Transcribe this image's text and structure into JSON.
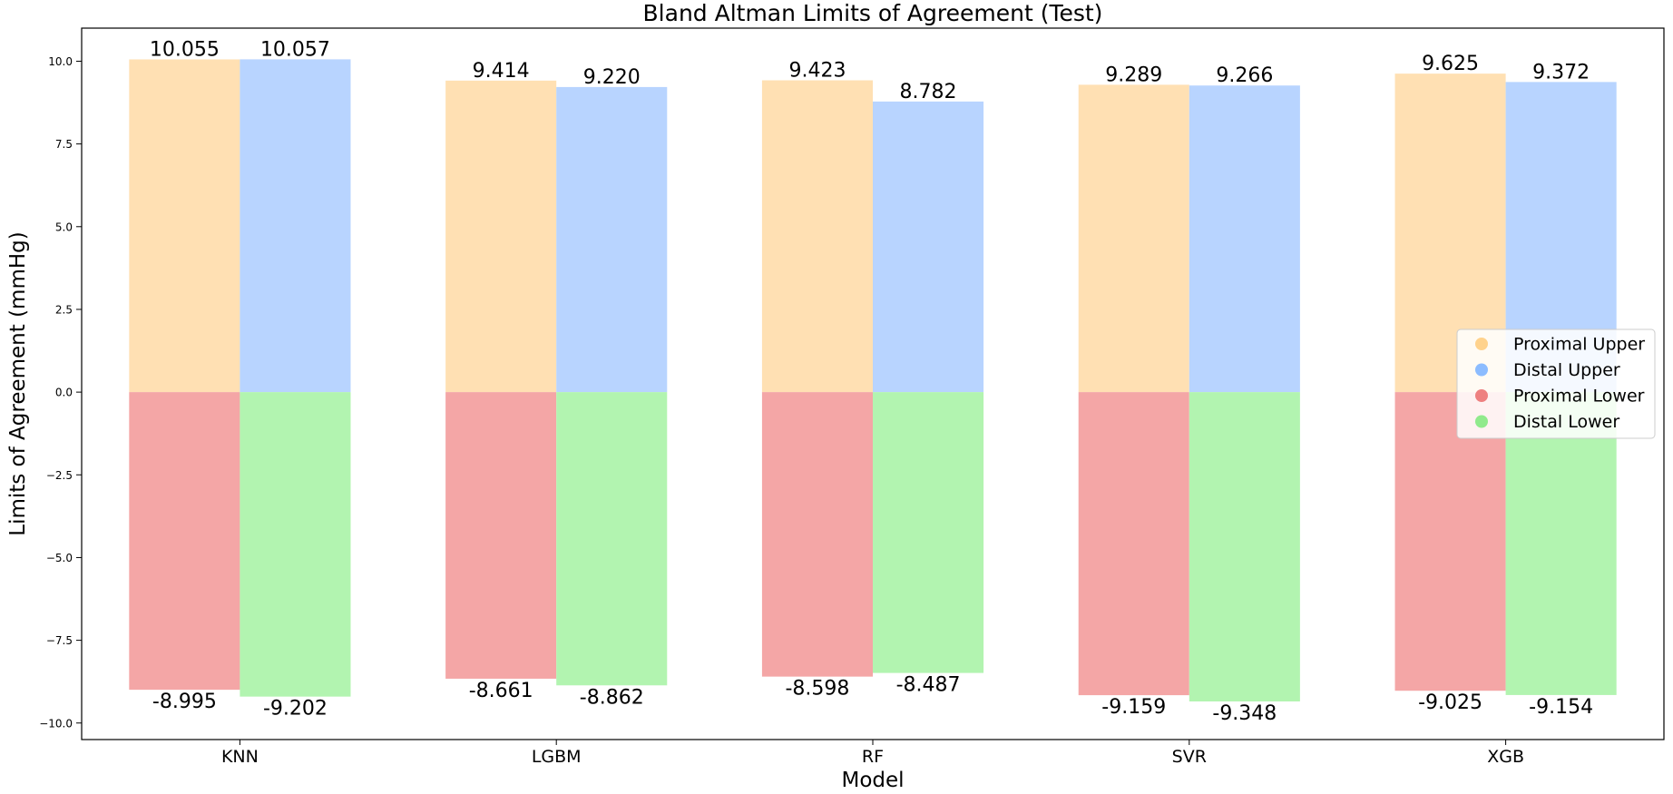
{
  "chart_data": {
    "type": "bar",
    "title": "Bland Altman Limits of Agreement (Test)",
    "xlabel": "Model",
    "ylabel": "Limits of Agreement (mmHg)",
    "categories": [
      "KNN",
      "LGBM",
      "RF",
      "SVR",
      "XGB"
    ],
    "ylim": [
      -10.5,
      11.0
    ],
    "yticks": [
      -10.0,
      -7.5,
      -5.0,
      -2.5,
      0.0,
      2.5,
      5.0,
      7.5,
      10.0
    ],
    "ytick_labels": [
      "−10.0",
      "−7.5",
      "−5.0",
      "−2.5",
      "0.0",
      "2.5",
      "5.0",
      "7.5",
      "10.0"
    ],
    "grid": false,
    "legend_position": "right",
    "series": [
      {
        "name": "Proximal Upper",
        "color": "#ffe0b3",
        "marker_color": "#ffd28c",
        "group": "upper",
        "offset": 0,
        "values": [
          10.055,
          9.414,
          9.423,
          9.289,
          9.625
        ],
        "labels": [
          "10.055",
          "9.414",
          "9.423",
          "9.289",
          "9.625"
        ]
      },
      {
        "name": "Distal Upper",
        "color": "#b8d4ff",
        "marker_color": "#8cbcff",
        "group": "upper",
        "offset": 1,
        "values": [
          10.057,
          9.22,
          8.782,
          9.266,
          9.372
        ],
        "labels": [
          "10.057",
          "9.220",
          "8.782",
          "9.266",
          "9.372"
        ]
      },
      {
        "name": "Proximal Lower",
        "color": "#f4a6a6",
        "marker_color": "#ee8080",
        "group": "lower",
        "offset": 0,
        "values": [
          -8.995,
          -8.661,
          -8.598,
          -9.159,
          -9.025
        ],
        "labels": [
          "-8.995",
          "-8.661",
          "-8.598",
          "-9.159",
          "-9.025"
        ]
      },
      {
        "name": "Distal Lower",
        "color": "#b2f4b0",
        "marker_color": "#90ea8c",
        "group": "lower",
        "offset": 1,
        "values": [
          -9.202,
          -8.862,
          -8.487,
          -9.348,
          -9.154
        ],
        "labels": [
          "-9.202",
          "-8.862",
          "-8.487",
          "-9.348",
          "-9.154"
        ]
      }
    ]
  }
}
